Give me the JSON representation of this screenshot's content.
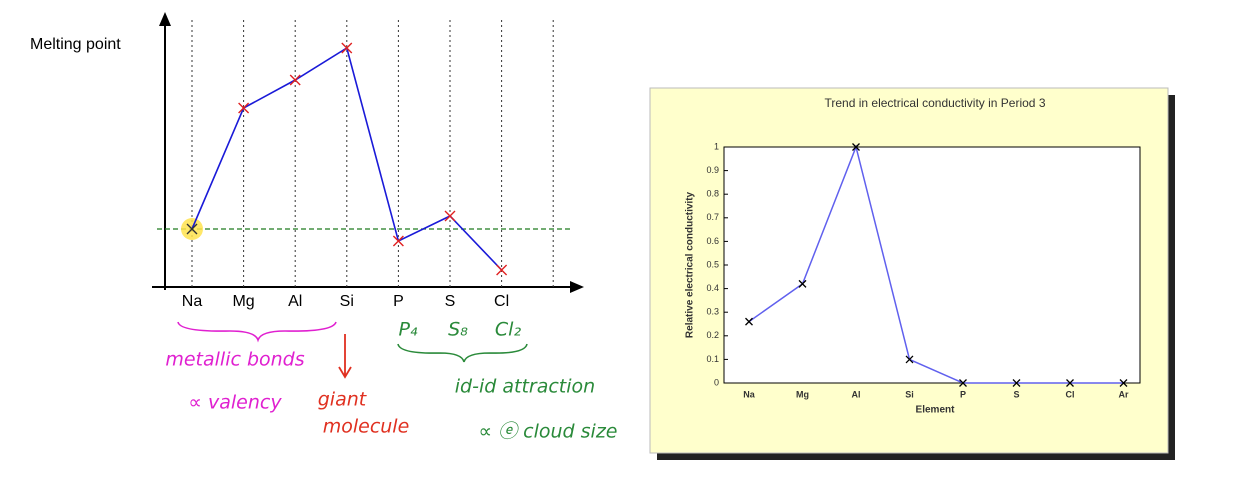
{
  "chart_data": [
    {
      "type": "line",
      "ylabel": "Melting point",
      "categories": [
        "Na",
        "Mg",
        "Al",
        "Si",
        "P",
        "S",
        "Cl",
        null
      ],
      "values": [
        58,
        179,
        207,
        239,
        46,
        71,
        17,
        null
      ],
      "ylim": [
        0,
        267
      ],
      "color": "#1a1ad8",
      "marker_color": "#e02020",
      "reference_line": 58,
      "reference_color": "#1f7a1f",
      "annotations": [
        {
          "text": "P₄",
          "color": "#2a8a3a"
        },
        {
          "text": "S₈",
          "color": "#2a8a3a"
        },
        {
          "text": "Cl₂",
          "color": "#2a8a3a"
        },
        {
          "text": "metallic bonds",
          "color": "#e020d0"
        },
        {
          "text": "∝ valency",
          "color": "#e020d0"
        },
        {
          "text": "giant",
          "color": "#e03020"
        },
        {
          "text": "molecule",
          "color": "#e03020"
        },
        {
          "text": "id-id attraction",
          "color": "#2a8a3a"
        },
        {
          "text": "∝ ⓔ cloud size",
          "color": "#2a8a3a"
        }
      ]
    },
    {
      "type": "line",
      "title": "Trend in electrical conductivity in Period 3",
      "xlabel": "Element",
      "ylabel": "Relative electrical conductivity",
      "categories": [
        "Na",
        "Mg",
        "Al",
        "Si",
        "P",
        "S",
        "Cl",
        "Ar"
      ],
      "values": [
        0.26,
        0.42,
        1,
        0.1,
        0,
        0,
        0,
        0
      ],
      "ylim": [
        0,
        1
      ],
      "yticks": [
        0,
        0.1,
        0.2,
        0.3,
        0.4,
        0.5,
        0.6,
        0.7,
        0.8,
        0.9,
        1
      ],
      "color": "#6060ee",
      "marker_color": "#000000"
    }
  ]
}
